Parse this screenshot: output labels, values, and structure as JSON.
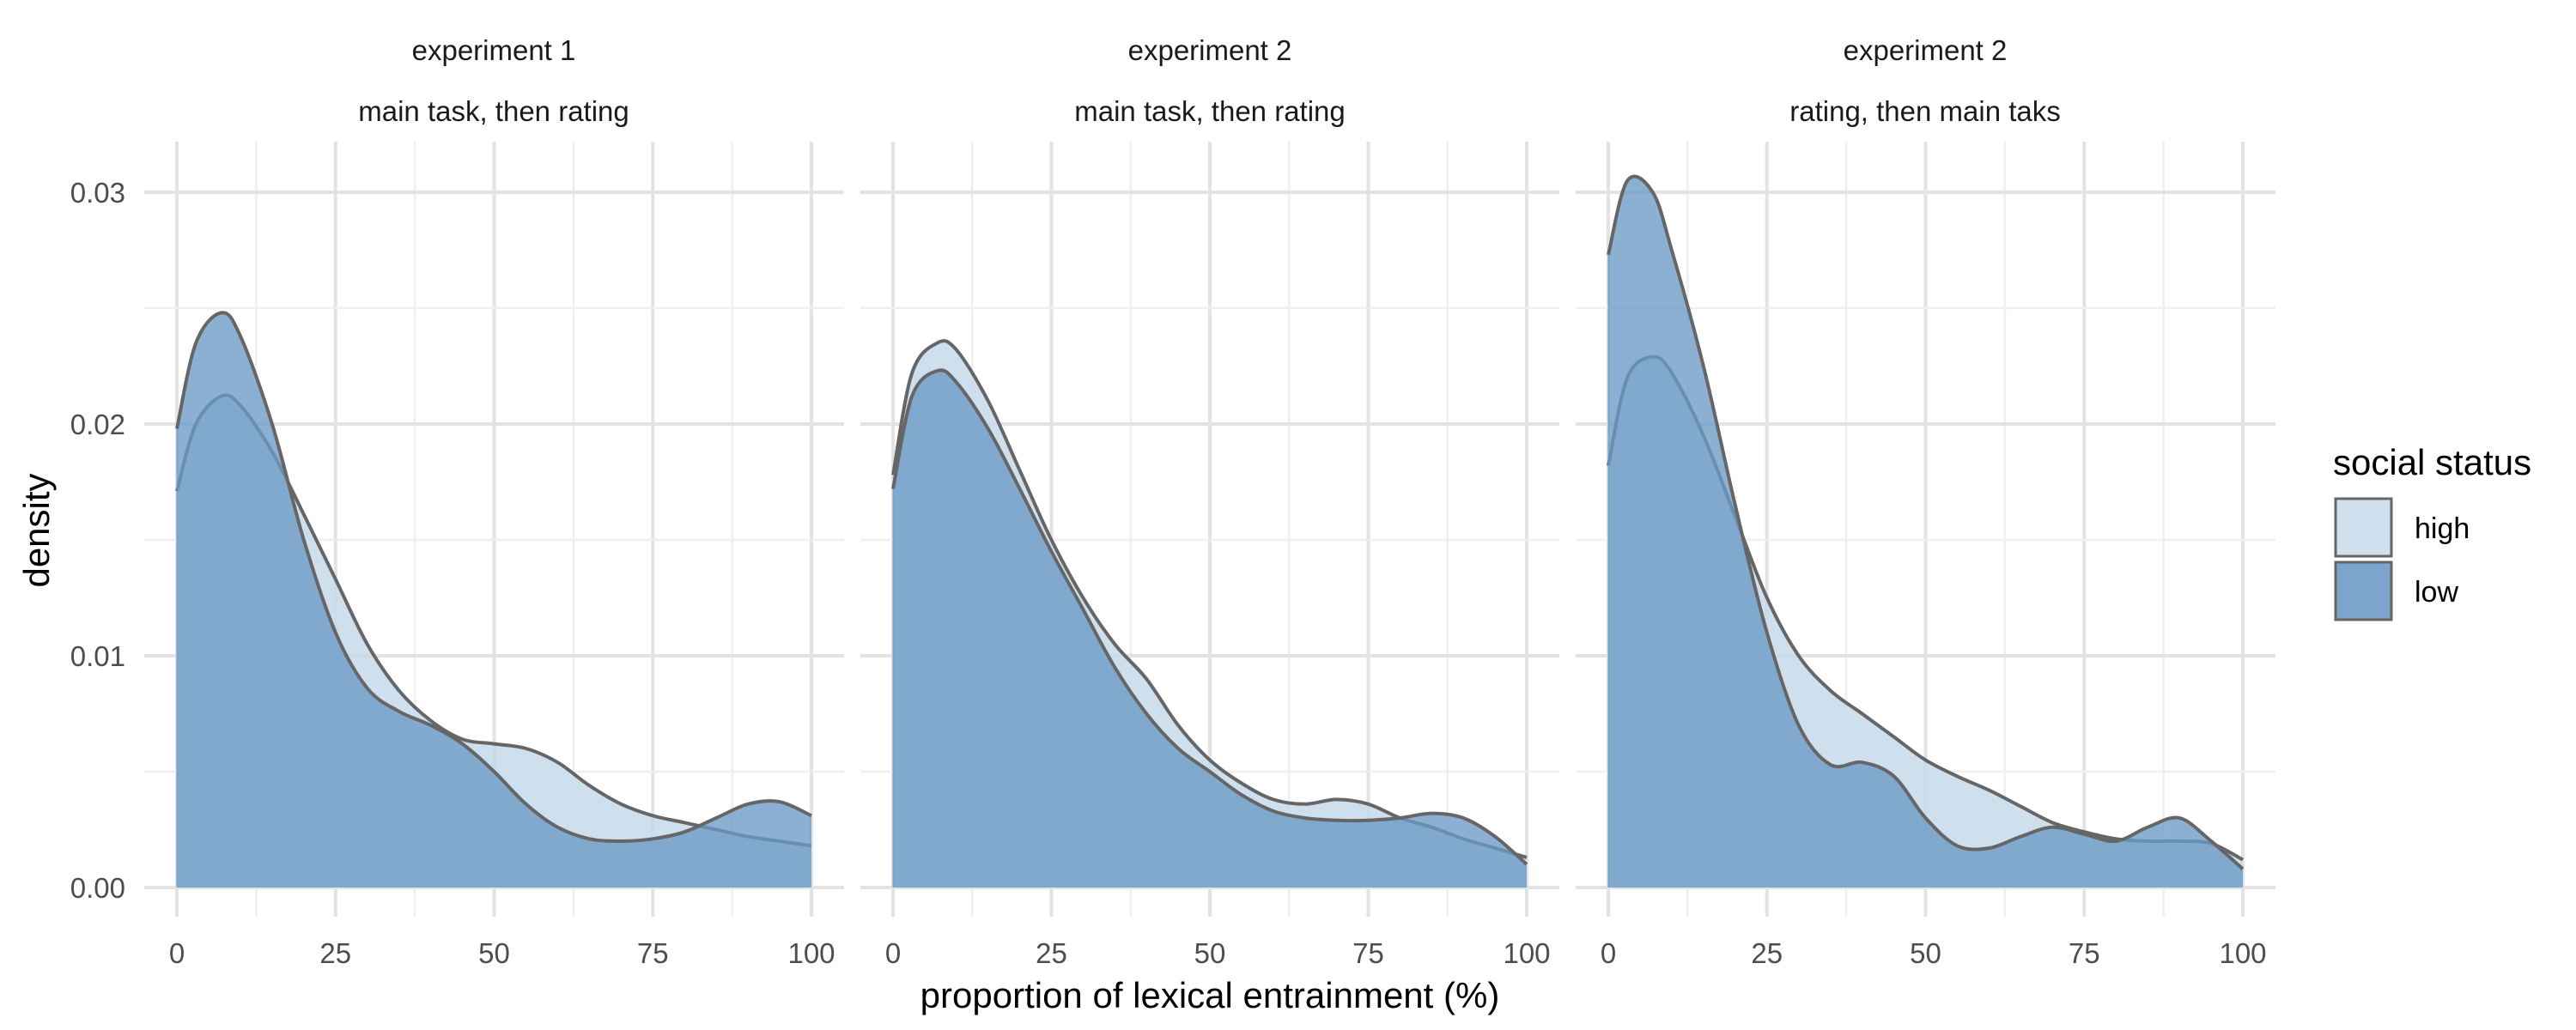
{
  "chart_data": {
    "type": "area",
    "subtype": "density",
    "xlabel": "proportion of lexical entrainment (%)",
    "ylabel": "density",
    "xlim": [
      0,
      100
    ],
    "ylim": [
      0,
      0.032
    ],
    "x_ticks": [
      "0",
      "25",
      "50",
      "75",
      "100"
    ],
    "y_ticks": [
      "0.00",
      "0.01",
      "0.02",
      "0.03"
    ],
    "grid": true,
    "legend": {
      "title": "social status",
      "position": "right",
      "entries": [
        {
          "label": "high",
          "color": "#cfe1ee"
        },
        {
          "label": "low",
          "color": "#7ca4cc"
        }
      ]
    },
    "colors": {
      "high": "#c6dbea",
      "low": "#6b9ac4",
      "outline": "#666666",
      "overlap": "#74a4c9"
    },
    "panels": [
      {
        "strip": [
          "experiment 1",
          "main task, then rating"
        ],
        "series": [
          {
            "name": "high",
            "x": [
              0,
              3,
              7,
              10,
              15,
              20,
              25,
              30,
              35,
              40,
              45,
              50,
              55,
              60,
              65,
              70,
              75,
              80,
              85,
              90,
              95,
              100
            ],
            "y": [
              0.0171,
              0.02,
              0.0212,
              0.0208,
              0.0188,
              0.0161,
              0.0133,
              0.0105,
              0.0085,
              0.0072,
              0.0064,
              0.0062,
              0.006,
              0.0054,
              0.0044,
              0.0036,
              0.0031,
              0.0028,
              0.0025,
              0.0022,
              0.002,
              0.0018
            ]
          },
          {
            "name": "low",
            "x": [
              0,
              3,
              7,
              10,
              15,
              20,
              25,
              30,
              35,
              40,
              45,
              50,
              55,
              60,
              65,
              70,
              75,
              80,
              85,
              90,
              95,
              100
            ],
            "y": [
              0.0198,
              0.0235,
              0.0248,
              0.0238,
              0.02,
              0.015,
              0.011,
              0.0086,
              0.0076,
              0.007,
              0.0062,
              0.005,
              0.0036,
              0.0026,
              0.0021,
              0.002,
              0.0021,
              0.0024,
              0.003,
              0.0036,
              0.0037,
              0.0031
            ]
          }
        ]
      },
      {
        "strip": [
          "experiment 2",
          "main task, then rating"
        ],
        "series": [
          {
            "name": "high",
            "x": [
              0,
              3,
              7,
              10,
              15,
              20,
              25,
              30,
              35,
              40,
              45,
              50,
              55,
              60,
              65,
              70,
              75,
              80,
              85,
              90,
              95,
              100
            ],
            "y": [
              0.0178,
              0.0222,
              0.0235,
              0.0232,
              0.021,
              0.018,
              0.015,
              0.0125,
              0.0105,
              0.009,
              0.007,
              0.0055,
              0.0045,
              0.0038,
              0.0036,
              0.0038,
              0.0036,
              0.003,
              0.0026,
              0.0021,
              0.0017,
              0.0013
            ]
          },
          {
            "name": "low",
            "x": [
              0,
              3,
              7,
              10,
              15,
              20,
              25,
              30,
              35,
              40,
              45,
              50,
              55,
              60,
              65,
              70,
              75,
              80,
              85,
              90,
              95,
              100
            ],
            "y": [
              0.0172,
              0.0212,
              0.0223,
              0.0218,
              0.0198,
              0.0172,
              0.0145,
              0.012,
              0.0095,
              0.0075,
              0.006,
              0.005,
              0.004,
              0.0033,
              0.003,
              0.0029,
              0.0029,
              0.003,
              0.0032,
              0.003,
              0.0022,
              0.001
            ]
          }
        ]
      },
      {
        "strip": [
          "experiment 2",
          "rating, then main taks"
        ],
        "series": [
          {
            "name": "high",
            "x": [
              0,
              3,
              7,
              10,
              15,
              20,
              25,
              30,
              35,
              40,
              45,
              50,
              55,
              60,
              65,
              70,
              75,
              80,
              85,
              90,
              95,
              100
            ],
            "y": [
              0.0182,
              0.022,
              0.0229,
              0.0222,
              0.0195,
              0.016,
              0.0125,
              0.01,
              0.0085,
              0.0075,
              0.0065,
              0.0055,
              0.0048,
              0.0042,
              0.0035,
              0.0028,
              0.0024,
              0.0021,
              0.002,
              0.002,
              0.0019,
              0.0012
            ]
          },
          {
            "name": "low",
            "x": [
              0,
              3,
              7,
              10,
              15,
              20,
              25,
              30,
              35,
              40,
              45,
              50,
              55,
              60,
              65,
              70,
              75,
              80,
              85,
              90,
              95,
              100
            ],
            "y": [
              0.0273,
              0.0305,
              0.03,
              0.0275,
              0.0225,
              0.0165,
              0.011,
              0.007,
              0.0053,
              0.0054,
              0.0048,
              0.003,
              0.0018,
              0.0017,
              0.0022,
              0.0026,
              0.0023,
              0.002,
              0.0026,
              0.003,
              0.002,
              0.0008
            ]
          }
        ]
      }
    ]
  }
}
